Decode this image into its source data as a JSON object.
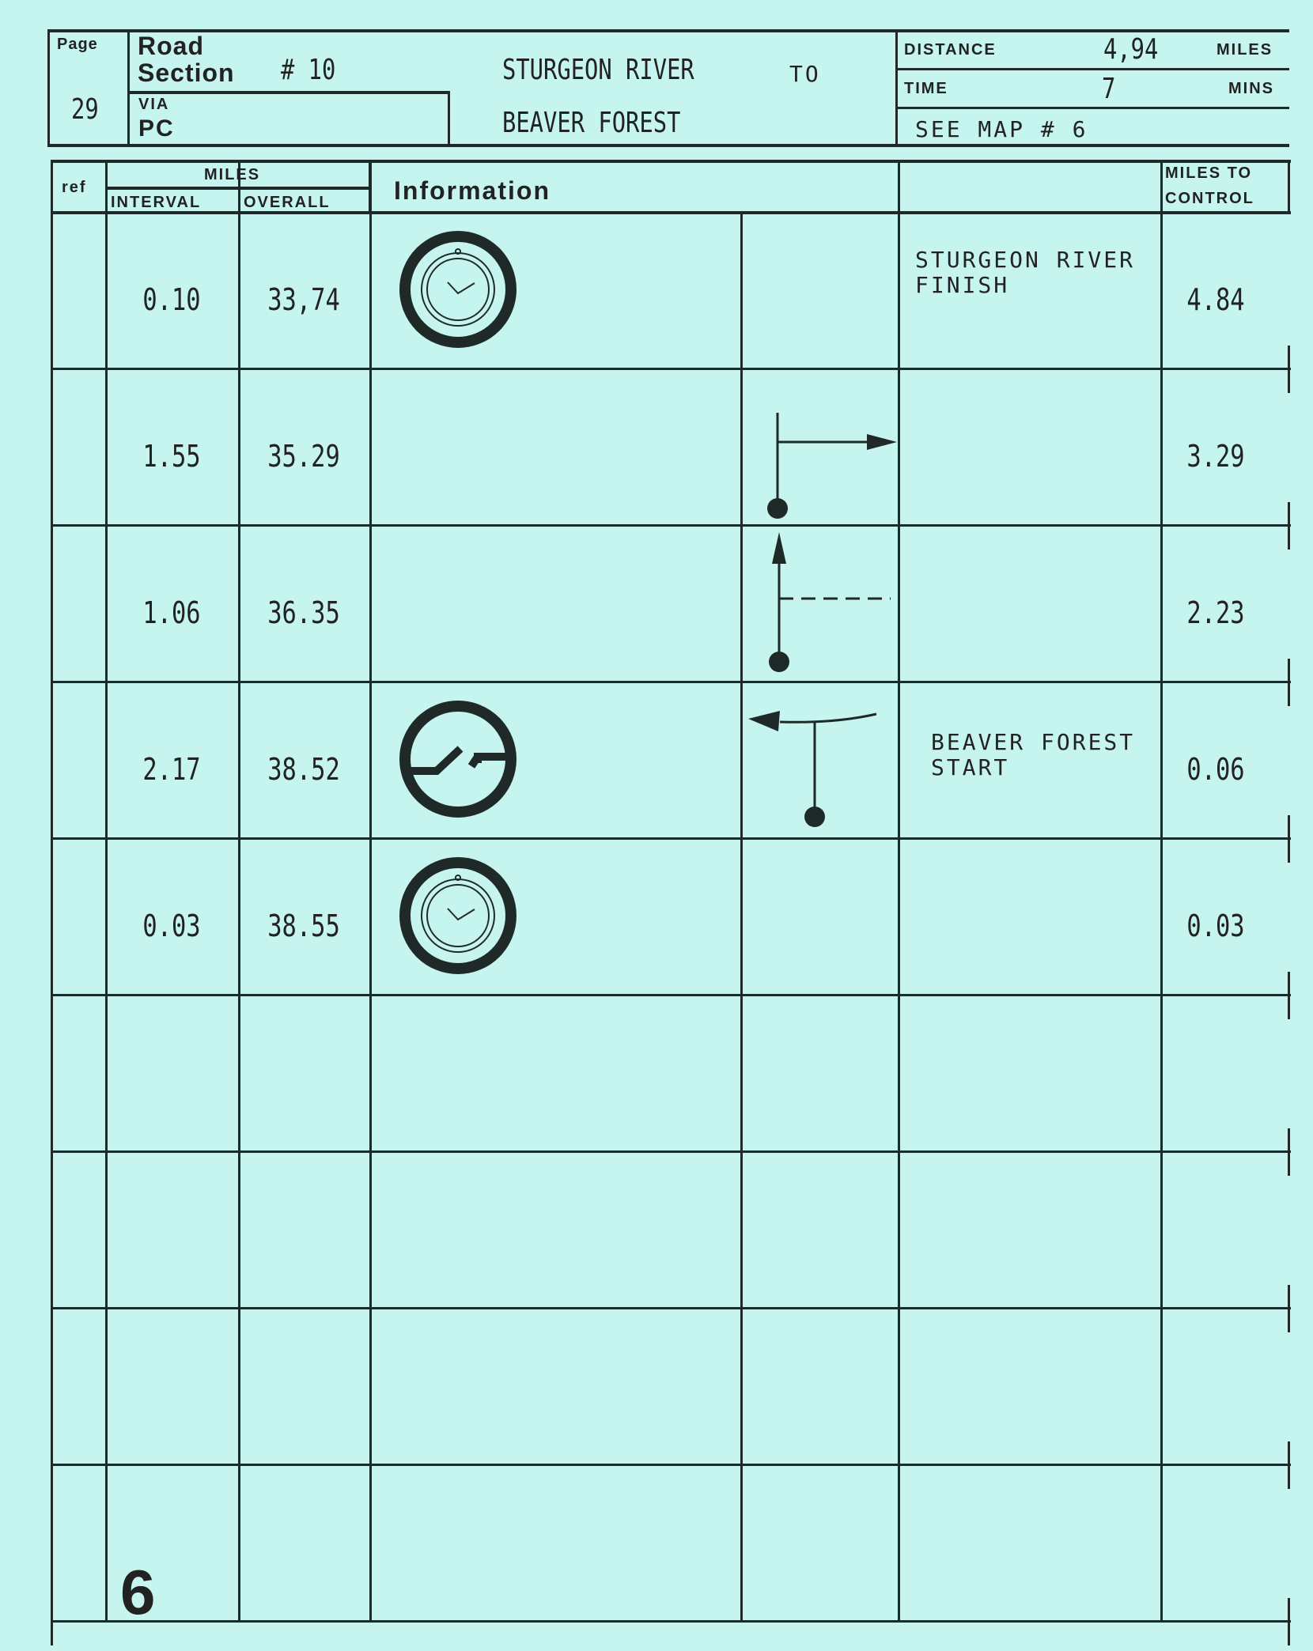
{
  "header": {
    "page_label": "Page",
    "page_number": "29",
    "road_section_label_line1": "Road",
    "road_section_label_line2": "Section",
    "road_section_number": "# 10",
    "via_label": "VIA",
    "via_value": "PC",
    "from": "STURGEON RIVER",
    "to_label": "TO",
    "to": "BEAVER FOREST",
    "distance_label": "DISTANCE",
    "distance_value": "4,94",
    "distance_unit": "MILES",
    "time_label": "TIME",
    "time_value": "7",
    "time_unit": "MINS",
    "map_ref": "SEE MAP # 6"
  },
  "table": {
    "ref_header": "ref",
    "miles_header": "MILES",
    "interval_header": "INTERVAL",
    "overall_header": "OVERALL",
    "information_header": "Information",
    "miles_to_control_header_line1": "MILES TO",
    "miles_to_control_header_line2": "CONTROL",
    "rows": [
      {
        "interval": "0.10",
        "overall": "33,74",
        "icon": "stopwatch-icon",
        "tulip": "",
        "desc1": "STURGEON RIVER",
        "desc2": "FINISH",
        "to_control": "4.84"
      },
      {
        "interval": "1.55",
        "overall": "35.29",
        "icon": "",
        "tulip": "turn-right",
        "desc1": "",
        "desc2": "",
        "to_control": "3.29"
      },
      {
        "interval": "1.06",
        "overall": "36.35",
        "icon": "",
        "tulip": "straight-past-track-right",
        "desc1": "",
        "desc2": "",
        "to_control": "2.23"
      },
      {
        "interval": "2.17",
        "overall": "38.52",
        "icon": "control-start-icon",
        "tulip": "t-junction-left",
        "desc1": "BEAVER FOREST",
        "desc2": "START",
        "to_control": "0.06"
      },
      {
        "interval": "0.03",
        "overall": "38.55",
        "icon": "stopwatch-icon",
        "tulip": "",
        "desc1": "",
        "desc2": "",
        "to_control": "0.03"
      },
      {
        "interval": "",
        "overall": "",
        "icon": "",
        "tulip": "",
        "desc1": "",
        "desc2": "",
        "to_control": ""
      },
      {
        "interval": "",
        "overall": "",
        "icon": "",
        "tulip": "",
        "desc1": "",
        "desc2": "",
        "to_control": ""
      },
      {
        "interval": "",
        "overall": "",
        "icon": "",
        "tulip": "",
        "desc1": "",
        "desc2": "",
        "to_control": ""
      },
      {
        "interval": "",
        "overall": "",
        "icon": "",
        "tulip": "",
        "desc1": "",
        "desc2": "",
        "to_control": ""
      }
    ]
  },
  "footer": {
    "page_marker": "6"
  },
  "colors": {
    "paper": "#c6f5ef",
    "ink": "#1f2a28"
  }
}
